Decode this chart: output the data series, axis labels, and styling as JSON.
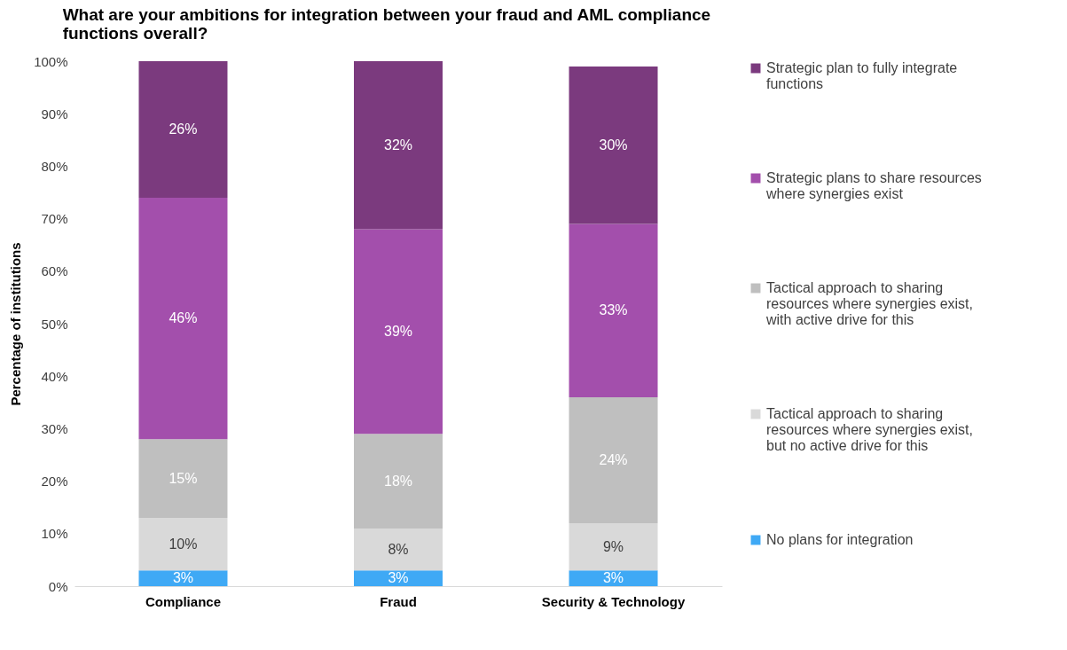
{
  "chart_data": {
    "type": "bar",
    "stacked": true,
    "title": "What are your ambitions for integration between your fraud and AML compliance functions overall?",
    "ylabel": "Percentage of institutions",
    "categories": [
      "Compliance",
      "Fraud",
      "Security & Technology"
    ],
    "ylim": [
      0,
      100
    ],
    "yticks": [
      {
        "value": 0,
        "label": "0%"
      },
      {
        "value": 10,
        "label": "10%"
      },
      {
        "value": 20,
        "label": "20%"
      },
      {
        "value": 30,
        "label": "30%"
      },
      {
        "value": 40,
        "label": "40%"
      },
      {
        "value": 50,
        "label": "50%"
      },
      {
        "value": 60,
        "label": "60%"
      },
      {
        "value": 70,
        "label": "70%"
      },
      {
        "value": 80,
        "label": "80%"
      },
      {
        "value": 90,
        "label": "90%"
      },
      {
        "value": 100,
        "label": "100%"
      }
    ],
    "grid": false,
    "legend": "right",
    "series": [
      {
        "name": "No plans for integration",
        "color": "#3fa9f5",
        "values": [
          3,
          3,
          3
        ],
        "value_labels": [
          "3%",
          "3%",
          "3%"
        ]
      },
      {
        "name": "Tactical approach to sharing resources where synergies exist, but no active drive for this",
        "color": "#d9d9d9",
        "values": [
          10,
          8,
          9
        ],
        "value_labels": [
          "10%",
          "8%",
          "9%"
        ]
      },
      {
        "name": "Tactical approach to sharing resources where synergies exist, with active drive for this",
        "color": "#bfbfbf",
        "values": [
          15,
          18,
          24
        ],
        "value_labels": [
          "15%",
          "18%",
          "24%"
        ]
      },
      {
        "name": "Strategic plans to share resources where synergies exist",
        "color": "#a34fac",
        "values": [
          46,
          39,
          33
        ],
        "value_labels": [
          "46%",
          "39%",
          "33%"
        ]
      },
      {
        "name": "Strategic plan to fully integrate functions",
        "color": "#7b3a7e",
        "values": [
          26,
          32,
          30
        ],
        "value_labels": [
          "26%",
          "32%",
          "30%"
        ]
      }
    ]
  }
}
